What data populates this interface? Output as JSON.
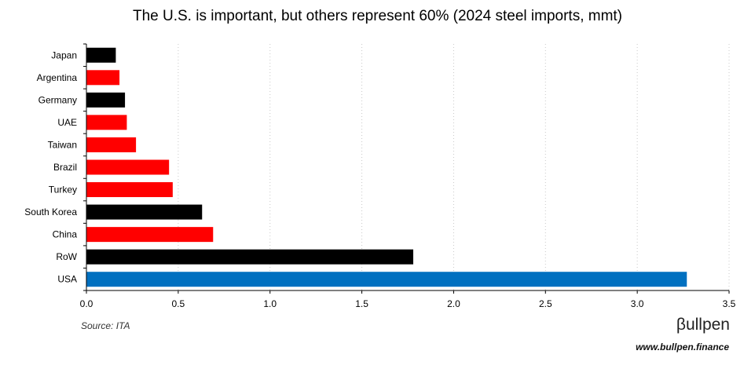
{
  "chart_data": {
    "type": "bar",
    "orientation": "horizontal",
    "title": "The U.S. is important, but others represent 60% (2024 steel imports, mmt)",
    "categories": [
      "Japan",
      "Argentina",
      "Germany",
      "UAE",
      "Taiwan",
      "Brazil",
      "Turkey",
      "South Korea",
      "China",
      "RoW",
      "USA"
    ],
    "values": [
      0.16,
      0.18,
      0.21,
      0.22,
      0.27,
      0.45,
      0.47,
      0.63,
      0.69,
      1.78,
      3.27
    ],
    "bar_colors": [
      "#000000",
      "#ff0000",
      "#000000",
      "#ff0000",
      "#ff0000",
      "#ff0000",
      "#ff0000",
      "#000000",
      "#ff0000",
      "#000000",
      "#0070c0"
    ],
    "xlim": [
      0,
      3.5
    ],
    "xticks": [
      "0.0",
      "0.5",
      "1.0",
      "1.5",
      "2.0",
      "2.5",
      "3.0",
      "3.5"
    ],
    "xtick_values": [
      0,
      0.5,
      1.0,
      1.5,
      2.0,
      2.5,
      3.0,
      3.5
    ],
    "grid": "vertical dotted",
    "legend": "none"
  },
  "footer": {
    "source": "Source: ITA",
    "brand": "βullpen",
    "url": "www.bullpen.finance"
  }
}
